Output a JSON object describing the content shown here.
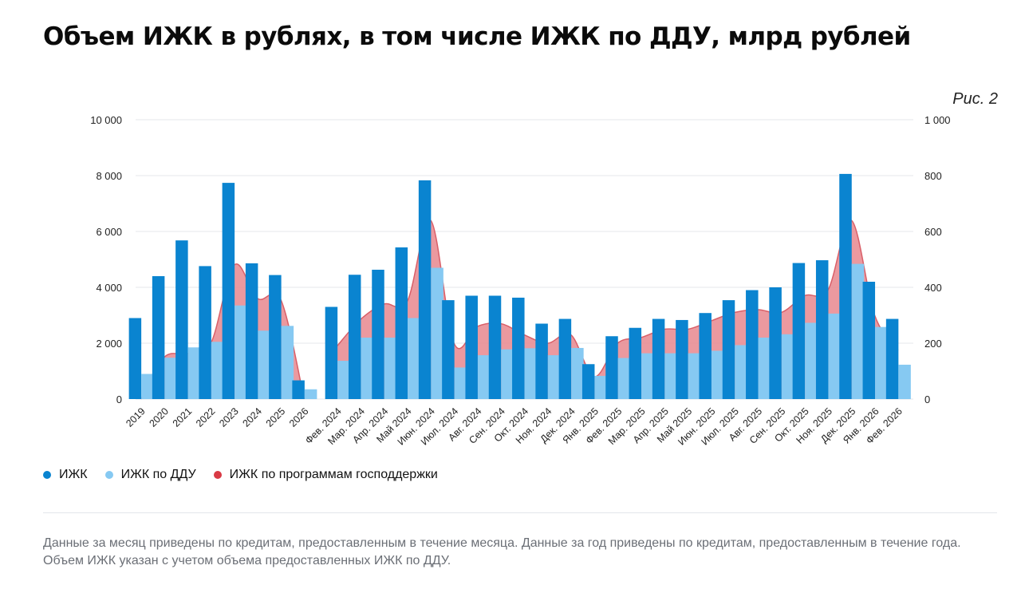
{
  "title": "Объем ИЖК в рублях, в том числе ИЖК по ДДУ, млрд рублей",
  "fig_label": "Рис. 2",
  "legend": [
    {
      "label": "ИЖК",
      "color": "#0a84d0"
    },
    {
      "label": "ИЖК по ДДУ",
      "color": "#86c9f2"
    },
    {
      "label": "ИЖК по программам господдержки",
      "color": "#d93a45"
    }
  ],
  "note": "Данные за месяц приведены по кредитам, предоставленным в течение месяца. Данные за год приведены по кредитам, предоставленным в течение года. Объем ИЖК указан с учетом объема предоставленных ИЖК по ДДУ.",
  "colors": {
    "izhk": "#0a84d0",
    "ddu": "#86c9f2",
    "gov_fill": "#e8878e",
    "gov_line": "#d95f68",
    "grid": "#e4e7eb"
  },
  "chart_data": {
    "type": "bar",
    "x_annual": [
      "2019",
      "2020",
      "2021",
      "2022",
      "2023",
      "2024",
      "2025",
      "2026"
    ],
    "x_monthly": [
      "Фев. 2024",
      "Мар. 2024",
      "Апр. 2024",
      "Май 2024",
      "Июн. 2024",
      "Июл. 2024",
      "Авг. 2024",
      "Сен. 2024",
      "Окт. 2024",
      "Ноя. 2024",
      "Дек. 2024",
      "Янв. 2025",
      "Фев. 2025",
      "Мар. 2025",
      "Апр. 2025",
      "Май 2025",
      "Июн. 2025",
      "Июл. 2025",
      "Авг. 2025",
      "Сен. 2025",
      "Окт. 2025",
      "Ноя. 2025",
      "Дек. 2025",
      "Янв. 2026",
      "Фев. 2026"
    ],
    "left_axis": {
      "ticks": [
        "0",
        "2 000",
        "4 000",
        "6 000",
        "8 000",
        "10 000"
      ],
      "ylim": [
        0,
        10000
      ]
    },
    "right_axis": {
      "ticks": [
        "0",
        "200",
        "400",
        "600",
        "800",
        "1 000"
      ],
      "ylim": [
        0,
        1000
      ]
    },
    "grid": true,
    "legend_position": "bottom-left",
    "series": [
      {
        "name": "ИЖК",
        "axis": "left",
        "type": "bar",
        "annual": [
          2900,
          4400,
          5680,
          4760,
          7740,
          4860,
          4440,
          670
        ],
        "monthly": [
          330,
          445,
          463,
          543,
          783,
          354,
          370,
          370,
          363,
          270,
          287,
          125,
          225,
          255,
          287,
          283,
          308,
          354,
          390,
          400,
          487,
          497,
          806,
          420,
          287
        ]
      },
      {
        "name": "ИЖК по ДДУ",
        "axis": "left",
        "type": "bar",
        "annual": [
          900,
          1480,
          1850,
          2050,
          3350,
          2450,
          2620,
          350
        ],
        "monthly": [
          137,
          220,
          220,
          290,
          470,
          113,
          157,
          178,
          182,
          157,
          183,
          83,
          147,
          164,
          164,
          164,
          173,
          193,
          220,
          232,
          273,
          306,
          484,
          258,
          123
        ]
      },
      {
        "name": "ИЖК по программам господдержки",
        "axis": "left",
        "type": "area",
        "annual": [
          0,
          1500,
          1620,
          2000,
          4800,
          3600,
          3550,
          0
        ],
        "monthly": [
          190,
          285,
          340,
          350,
          640,
          200,
          260,
          270,
          230,
          200,
          230,
          80,
          200,
          220,
          250,
          250,
          280,
          310,
          320,
          310,
          370,
          390,
          640,
          300,
          175
        ]
      }
    ]
  }
}
